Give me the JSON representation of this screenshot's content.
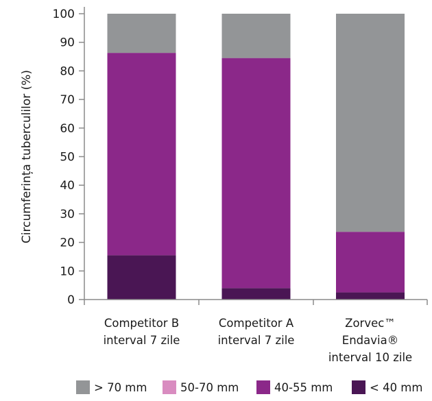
{
  "chart_data": {
    "type": "bar",
    "stacked": true,
    "ylabel": "Circumferința tuberculilor (%)",
    "ylim": [
      0,
      100
    ],
    "yticks": [
      0,
      10,
      20,
      30,
      40,
      50,
      60,
      70,
      80,
      90,
      100
    ],
    "grid": false,
    "legend_position": "bottom",
    "categories": [
      [
        "Competitor B",
        "interval 7 zile"
      ],
      [
        "Competitor A",
        "interval 7 zile"
      ],
      [
        "Zorvec™",
        "Endavia®",
        "interval 10 zile"
      ]
    ],
    "series": [
      {
        "name": "< 40 mm",
        "color": "#4a1654",
        "values": [
          15.5,
          4,
          2.5
        ]
      },
      {
        "name": "40-55 mm",
        "color": "#8b2889",
        "values": [
          70.8,
          80.5,
          21.2
        ]
      },
      {
        "name": "50-70 mm",
        "color": "#d98cc0",
        "values": [
          0,
          0,
          0
        ]
      },
      {
        "name": "> 70 mm",
        "color": "#939597",
        "values": [
          13.7,
          15.5,
          76.3
        ]
      }
    ],
    "legend_order": [
      "> 70 mm",
      "50-70 mm",
      "40-55 mm",
      "< 40 mm"
    ]
  }
}
